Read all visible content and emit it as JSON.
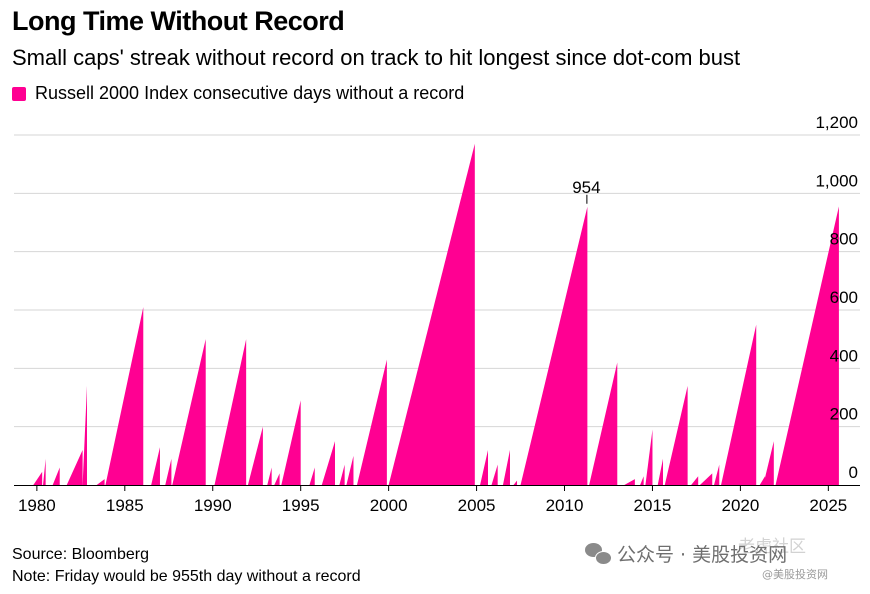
{
  "header": {
    "title": "Long Time Without Record",
    "subtitle": "Small caps' streak without record on track to hit longest since dot-com bust"
  },
  "legend": {
    "label": "Russell 2000 Index consecutive days without a record",
    "color": "#ff0092"
  },
  "footer": {
    "source": "Source: Bloomberg",
    "note": "Note: Friday would be 955th day without a record"
  },
  "watermark": {
    "text": "公众号 · 美股投资网",
    "handle": "@美股投资网",
    "logo_text": "老虎社区"
  },
  "chart_data": {
    "type": "area",
    "title": "Long Time Without Record",
    "subtitle": "Small caps' streak without record on track to hit longest since dot-com bust",
    "series": [
      {
        "name": "Russell 2000 Index consecutive days without a record",
        "color": "#ff0092",
        "streaks": [
          {
            "start": 1979.8,
            "end": 1980.3,
            "peak": 45
          },
          {
            "start": 1980.35,
            "end": 1980.5,
            "peak": 90
          },
          {
            "start": 1980.9,
            "end": 1981.3,
            "peak": 60
          },
          {
            "start": 1981.7,
            "end": 1982.6,
            "peak": 120
          },
          {
            "start": 1982.6,
            "end": 1982.85,
            "peak": 340
          },
          {
            "start": 1983.4,
            "end": 1983.85,
            "peak": 20
          },
          {
            "start": 1983.9,
            "end": 1986.05,
            "peak": 610
          },
          {
            "start": 1986.5,
            "end": 1987.0,
            "peak": 130
          },
          {
            "start": 1987.3,
            "end": 1987.65,
            "peak": 90
          },
          {
            "start": 1987.7,
            "end": 1989.6,
            "peak": 500
          },
          {
            "start": 1990.1,
            "end": 1991.9,
            "peak": 500
          },
          {
            "start": 1992.0,
            "end": 1992.85,
            "peak": 200
          },
          {
            "start": 1993.1,
            "end": 1993.35,
            "peak": 60
          },
          {
            "start": 1993.5,
            "end": 1993.8,
            "peak": 40
          },
          {
            "start": 1993.9,
            "end": 1995.0,
            "peak": 290
          },
          {
            "start": 1995.5,
            "end": 1995.8,
            "peak": 60
          },
          {
            "start": 1996.2,
            "end": 1996.95,
            "peak": 150
          },
          {
            "start": 1997.2,
            "end": 1997.5,
            "peak": 70
          },
          {
            "start": 1997.6,
            "end": 1998.0,
            "peak": 100
          },
          {
            "start": 1998.2,
            "end": 1999.9,
            "peak": 430
          },
          {
            "start": 2000.0,
            "end": 2004.9,
            "peak": 1170
          },
          {
            "start": 2005.2,
            "end": 2005.65,
            "peak": 120
          },
          {
            "start": 2005.85,
            "end": 2006.2,
            "peak": 70
          },
          {
            "start": 2006.5,
            "end": 2006.9,
            "peak": 120
          },
          {
            "start": 2007.1,
            "end": 2007.3,
            "peak": 15
          },
          {
            "start": 2007.5,
            "end": 2011.3,
            "peak": 954
          },
          {
            "start": 2011.4,
            "end": 2013.0,
            "peak": 420
          },
          {
            "start": 2013.4,
            "end": 2014.0,
            "peak": 20
          },
          {
            "start": 2014.3,
            "end": 2014.5,
            "peak": 30
          },
          {
            "start": 2014.6,
            "end": 2015.0,
            "peak": 190
          },
          {
            "start": 2015.3,
            "end": 2015.6,
            "peak": 90
          },
          {
            "start": 2015.7,
            "end": 2017.0,
            "peak": 340
          },
          {
            "start": 2017.2,
            "end": 2017.6,
            "peak": 30
          },
          {
            "start": 2017.7,
            "end": 2018.4,
            "peak": 40
          },
          {
            "start": 2018.5,
            "end": 2018.8,
            "peak": 70
          },
          {
            "start": 2018.9,
            "end": 2020.9,
            "peak": 550
          },
          {
            "start": 2021.1,
            "end": 2021.4,
            "peak": 30
          },
          {
            "start": 2021.3,
            "end": 2021.9,
            "peak": 150
          },
          {
            "start": 2022.0,
            "end": 2025.6,
            "peak": 955
          }
        ]
      }
    ],
    "annotations": [
      {
        "text": "954",
        "x": 2011.3,
        "y": 954
      }
    ],
    "xlim": [
      1978.7,
      2026.8
    ],
    "ylim": [
      0,
      1200
    ],
    "xticks": [
      1980,
      1985,
      1990,
      1995,
      2000,
      2005,
      2010,
      2015,
      2020,
      2025
    ],
    "xtick_labels": [
      "1980",
      "1985",
      "1990",
      "1995",
      "2000",
      "2005",
      "2010",
      "2015",
      "2020",
      "2025"
    ],
    "yticks": [
      0,
      200,
      400,
      600,
      800,
      1000,
      1200
    ],
    "ytick_labels": [
      "0",
      "200",
      "400",
      "600",
      "800",
      "1,000",
      "1,200"
    ],
    "grid": true,
    "y_axis_side": "right",
    "legend_position": "top-left"
  }
}
